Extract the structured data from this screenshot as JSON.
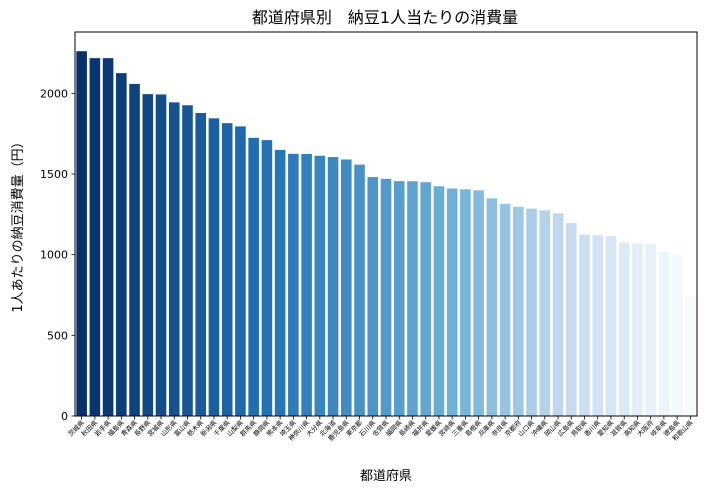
{
  "chart_data": {
    "type": "bar",
    "title": "都道府県別　納豆1人当たりの消費量",
    "xlabel": "都道府県",
    "ylabel": "1人あたりの納豆消費量（円）",
    "ylim": [
      0,
      2380
    ],
    "yticks": [
      0,
      500,
      1000,
      1500,
      2000
    ],
    "grid": false,
    "legend": "none",
    "colormap": "Blues (descending: dark to light)",
    "color_dark": "#08306b",
    "color_light": "#f7fbff",
    "categories": [
      "茨城県",
      "秋田県",
      "岩手県",
      "福島県",
      "青森県",
      "長野県",
      "宮城県",
      "山形県",
      "富山県",
      "栃木県",
      "新潟県",
      "千葉県",
      "山梨県",
      "群馬県",
      "静岡県",
      "熊本県",
      "埼玉県",
      "神奈川県",
      "大分県",
      "北海道",
      "鹿児島県",
      "東京都",
      "石川県",
      "佐賀県",
      "福岡県",
      "長崎県",
      "福井県",
      "愛媛県",
      "宮崎県",
      "三重県",
      "島根県",
      "兵庫県",
      "奈良県",
      "京都府",
      "山口県",
      "沖縄県",
      "岡山県",
      "広島県",
      "鳥取県",
      "香川県",
      "愛知県",
      "滋賀県",
      "高知県",
      "大阪府",
      "岐阜県",
      "徳島県",
      "和歌山県"
    ],
    "values": [
      2261,
      2218,
      2218,
      2125,
      2058,
      1995,
      1993,
      1944,
      1926,
      1878,
      1845,
      1815,
      1795,
      1724,
      1710,
      1649,
      1625,
      1624,
      1613,
      1605,
      1590,
      1558,
      1481,
      1470,
      1456,
      1455,
      1449,
      1424,
      1410,
      1405,
      1399,
      1349,
      1315,
      1297,
      1285,
      1275,
      1256,
      1196,
      1124,
      1121,
      1116,
      1076,
      1068,
      1066,
      1016,
      1004,
      744
    ]
  }
}
